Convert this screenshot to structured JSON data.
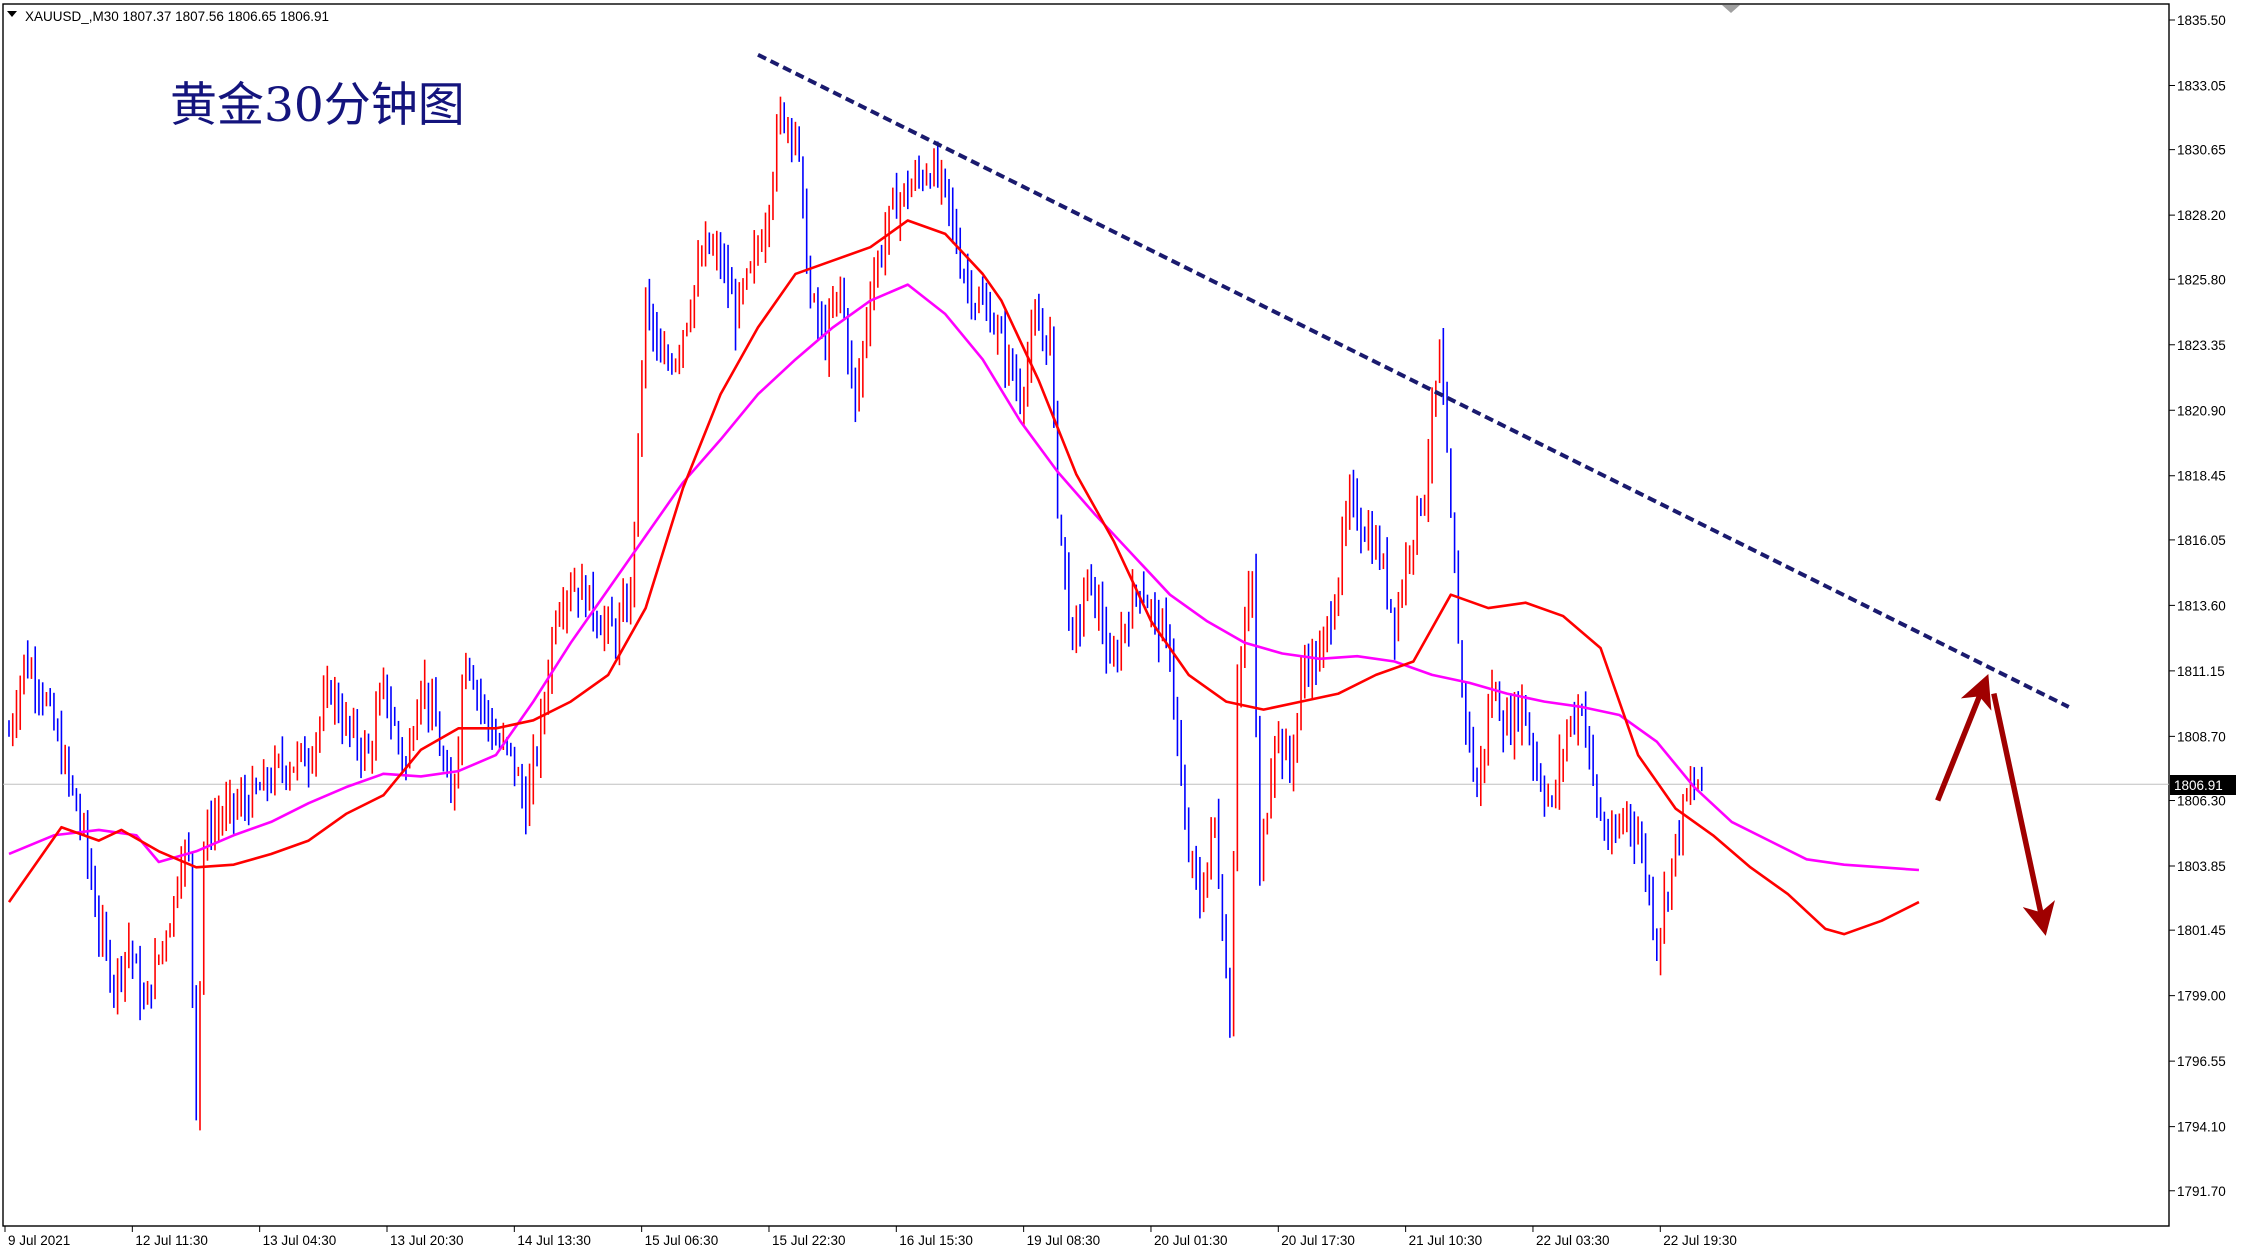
{
  "header": {
    "symbol_info": "XAUUSD_,M30  1807.37 1807.56 1806.65 1806.91"
  },
  "chart_data": {
    "type": "candlestick",
    "title": "黄金30分钟图",
    "symbol": "XAUUSD_",
    "timeframe": "M30",
    "ohlc_last": {
      "open": 1807.37,
      "high": 1807.56,
      "low": 1806.65,
      "close": 1806.91
    },
    "current_price": 1806.91,
    "current_price_label": "1806.91",
    "ylim": [
      1790.0,
      1836.6
    ],
    "y_ticks": [
      1835.5,
      1833.05,
      1830.65,
      1828.2,
      1825.8,
      1823.35,
      1820.9,
      1818.45,
      1816.05,
      1813.6,
      1811.15,
      1808.7,
      1806.3,
      1803.85,
      1801.45,
      1799.0,
      1796.55,
      1794.1,
      1791.7
    ],
    "y_tick_labels": [
      "1835.50",
      "1833.05",
      "1830.65",
      "1828.20",
      "1825.80",
      "1823.35",
      "1820.90",
      "1818.45",
      "1816.05",
      "1813.60",
      "1811.15",
      "1808.70",
      "1806.30",
      "1803.85",
      "1801.45",
      "1799.00",
      "1796.55",
      "1794.10",
      "1791.70"
    ],
    "x_tick_labels": [
      "9 Jul 2021",
      "12 Jul 11:30",
      "13 Jul 04:30",
      "13 Jul 20:30",
      "14 Jul 13:30",
      "15 Jul 06:30",
      "15 Jul 22:30",
      "16 Jul 15:30",
      "19 Jul 08:30",
      "20 Jul 01:30",
      "20 Jul 17:30",
      "21 Jul 10:30",
      "22 Jul 03:30",
      "22 Jul 19:30"
    ],
    "bars_per_tick": 34,
    "bar_count": 453,
    "bull_color": "#ff0000",
    "bear_color": "#0000ff",
    "close_path": [
      [
        0,
        1808.8
      ],
      [
        4,
        1811.5
      ],
      [
        8,
        1810.8
      ],
      [
        12,
        1809.0
      ],
      [
        16,
        1807.0
      ],
      [
        20,
        1805.0
      ],
      [
        24,
        1801.5
      ],
      [
        28,
        1799.5
      ],
      [
        32,
        1801.0
      ],
      [
        36,
        1798.5
      ],
      [
        40,
        1800.5
      ],
      [
        44,
        1802.5
      ],
      [
        46,
        1804.5
      ],
      [
        48,
        1804.0
      ],
      [
        50,
        1795.0
      ],
      [
        52,
        1804.5
      ],
      [
        54,
        1805.5
      ],
      [
        60,
        1806.0
      ],
      [
        66,
        1806.5
      ],
      [
        72,
        1807.5
      ],
      [
        80,
        1808.0
      ],
      [
        86,
        1810.5
      ],
      [
        90,
        1809.0
      ],
      [
        96,
        1808.0
      ],
      [
        100,
        1810.5
      ],
      [
        106,
        1807.5
      ],
      [
        110,
        1811.0
      ],
      [
        114,
        1809.0
      ],
      [
        118,
        1806.0
      ],
      [
        122,
        1812.0
      ],
      [
        126,
        1810.0
      ],
      [
        130,
        1808.5
      ],
      [
        134,
        1808.0
      ],
      [
        138,
        1806.0
      ],
      [
        142,
        1809.0
      ],
      [
        146,
        1813.5
      ],
      [
        150,
        1814.5
      ],
      [
        154,
        1814.0
      ],
      [
        158,
        1813.0
      ],
      [
        162,
        1812.5
      ],
      [
        166,
        1814.0
      ],
      [
        170,
        1825.0
      ],
      [
        174,
        1822.5
      ],
      [
        178,
        1823.0
      ],
      [
        182,
        1825.0
      ],
      [
        186,
        1827.0
      ],
      [
        190,
        1826.5
      ],
      [
        194,
        1824.5
      ],
      [
        198,
        1826.0
      ],
      [
        202,
        1828.0
      ],
      [
        206,
        1832.0
      ],
      [
        210,
        1831.5
      ],
      [
        214,
        1825.0
      ],
      [
        218,
        1823.5
      ],
      [
        222,
        1825.5
      ],
      [
        226,
        1821.0
      ],
      [
        230,
        1825.5
      ],
      [
        236,
        1828.5
      ],
      [
        242,
        1829.5
      ],
      [
        246,
        1830.0
      ],
      [
        250,
        1829.0
      ],
      [
        254,
        1826.5
      ],
      [
        258,
        1825.0
      ],
      [
        262,
        1824.5
      ],
      [
        266,
        1823.0
      ],
      [
        270,
        1821.5
      ],
      [
        274,
        1824.0
      ],
      [
        278,
        1823.5
      ],
      [
        280,
        1817.5
      ],
      [
        284,
        1812.0
      ],
      [
        288,
        1814.5
      ],
      [
        292,
        1813.0
      ],
      [
        294,
        1811.0
      ],
      [
        298,
        1813.0
      ],
      [
        302,
        1814.5
      ],
      [
        306,
        1813.0
      ],
      [
        310,
        1812.0
      ],
      [
        314,
        1805.0
      ],
      [
        318,
        1802.5
      ],
      [
        322,
        1805.5
      ],
      [
        326,
        1798.0
      ],
      [
        328,
        1811.0
      ],
      [
        332,
        1814.5
      ],
      [
        334,
        1803.5
      ],
      [
        338,
        1809.0
      ],
      [
        342,
        1807.5
      ],
      [
        346,
        1811.5
      ],
      [
        350,
        1811.5
      ],
      [
        354,
        1814.0
      ],
      [
        358,
        1817.5
      ],
      [
        362,
        1816.5
      ],
      [
        366,
        1815.5
      ],
      [
        370,
        1813.0
      ],
      [
        374,
        1816.0
      ],
      [
        378,
        1818.0
      ],
      [
        382,
        1823.0
      ],
      [
        386,
        1814.5
      ],
      [
        388,
        1810.5
      ],
      [
        392,
        1806.5
      ],
      [
        396,
        1810.5
      ],
      [
        400,
        1809.0
      ],
      [
        404,
        1810.0
      ],
      [
        408,
        1807.5
      ],
      [
        412,
        1806.0
      ],
      [
        416,
        1809.0
      ],
      [
        420,
        1810.0
      ],
      [
        424,
        1806.0
      ],
      [
        428,
        1804.5
      ],
      [
        432,
        1806.0
      ],
      [
        436,
        1804.5
      ],
      [
        440,
        1801.0
      ],
      [
        444,
        1804.0
      ],
      [
        448,
        1806.5
      ],
      [
        452,
        1806.91
      ]
    ],
    "ma_fast": {
      "color": "#ff0000",
      "points": [
        [
          0,
          1802.5
        ],
        [
          14,
          1805.3
        ],
        [
          24,
          1804.8
        ],
        [
          30,
          1805.2
        ],
        [
          40,
          1804.4
        ],
        [
          50,
          1803.8
        ],
        [
          60,
          1803.9
        ],
        [
          70,
          1804.3
        ],
        [
          80,
          1804.8
        ],
        [
          90,
          1805.8
        ],
        [
          100,
          1806.5
        ],
        [
          110,
          1808.2
        ],
        [
          120,
          1809.0
        ],
        [
          130,
          1809.0
        ],
        [
          140,
          1809.3
        ],
        [
          150,
          1810.0
        ],
        [
          160,
          1811.0
        ],
        [
          170,
          1813.5
        ],
        [
          180,
          1818.0
        ],
        [
          190,
          1821.5
        ],
        [
          200,
          1824.0
        ],
        [
          210,
          1826.0
        ],
        [
          220,
          1826.5
        ],
        [
          230,
          1827.0
        ],
        [
          240,
          1828.0
        ],
        [
          250,
          1827.5
        ],
        [
          260,
          1826.0
        ],
        [
          265,
          1825.0
        ],
        [
          275,
          1822.0
        ],
        [
          285,
          1818.5
        ],
        [
          295,
          1816.0
        ],
        [
          305,
          1813.0
        ],
        [
          315,
          1811.0
        ],
        [
          325,
          1810.0
        ],
        [
          335,
          1809.7
        ],
        [
          345,
          1810.0
        ],
        [
          355,
          1810.3
        ],
        [
          365,
          1811.0
        ],
        [
          375,
          1811.5
        ],
        [
          385,
          1814.0
        ],
        [
          395,
          1813.5
        ],
        [
          405,
          1813.7
        ],
        [
          415,
          1813.2
        ],
        [
          425,
          1812.0
        ],
        [
          435,
          1808.0
        ],
        [
          445,
          1806.0
        ],
        [
          455,
          1805.0
        ],
        [
          465,
          1803.8
        ],
        [
          475,
          1802.8
        ],
        [
          485,
          1801.5
        ],
        [
          490,
          1801.3
        ],
        [
          500,
          1801.8
        ],
        [
          510,
          1802.5
        ]
      ]
    },
    "ma_slow": {
      "color": "#ff00ff",
      "points": [
        [
          0,
          1804.3
        ],
        [
          12,
          1805.0
        ],
        [
          24,
          1805.2
        ],
        [
          34,
          1805.0
        ],
        [
          40,
          1804.0
        ],
        [
          50,
          1804.4
        ],
        [
          60,
          1805.0
        ],
        [
          70,
          1805.5
        ],
        [
          80,
          1806.2
        ],
        [
          90,
          1806.8
        ],
        [
          100,
          1807.3
        ],
        [
          110,
          1807.2
        ],
        [
          120,
          1807.4
        ],
        [
          130,
          1808.0
        ],
        [
          140,
          1810.0
        ],
        [
          150,
          1812.2
        ],
        [
          160,
          1814.2
        ],
        [
          170,
          1816.2
        ],
        [
          180,
          1818.2
        ],
        [
          190,
          1819.8
        ],
        [
          200,
          1821.5
        ],
        [
          210,
          1822.8
        ],
        [
          220,
          1824.0
        ],
        [
          230,
          1825.0
        ],
        [
          240,
          1825.6
        ],
        [
          250,
          1824.5
        ],
        [
          260,
          1822.8
        ],
        [
          270,
          1820.5
        ],
        [
          280,
          1818.6
        ],
        [
          290,
          1817.0
        ],
        [
          300,
          1815.5
        ],
        [
          310,
          1814.0
        ],
        [
          320,
          1813.0
        ],
        [
          330,
          1812.2
        ],
        [
          340,
          1811.8
        ],
        [
          350,
          1811.6
        ],
        [
          360,
          1811.7
        ],
        [
          370,
          1811.5
        ],
        [
          380,
          1811.0
        ],
        [
          390,
          1810.7
        ],
        [
          400,
          1810.3
        ],
        [
          410,
          1810.0
        ],
        [
          420,
          1809.8
        ],
        [
          430,
          1809.5
        ],
        [
          440,
          1808.5
        ],
        [
          450,
          1806.8
        ],
        [
          460,
          1805.5
        ],
        [
          470,
          1804.8
        ],
        [
          480,
          1804.1
        ],
        [
          490,
          1803.9
        ],
        [
          500,
          1803.8
        ],
        [
          510,
          1803.7
        ]
      ]
    },
    "trendline": {
      "color": "#1a1a6e",
      "style": "dashed",
      "from": [
        200,
        1834.2
      ],
      "to": [
        550,
        1809.8
      ]
    },
    "forecast_arrows": {
      "color": "#a00000",
      "up": {
        "from": [
          515,
          1806.3
        ],
        "to": [
          527,
          1810.5
        ]
      },
      "down": {
        "from": [
          530,
          1810.3
        ],
        "to": [
          543,
          1801.8
        ]
      }
    }
  }
}
